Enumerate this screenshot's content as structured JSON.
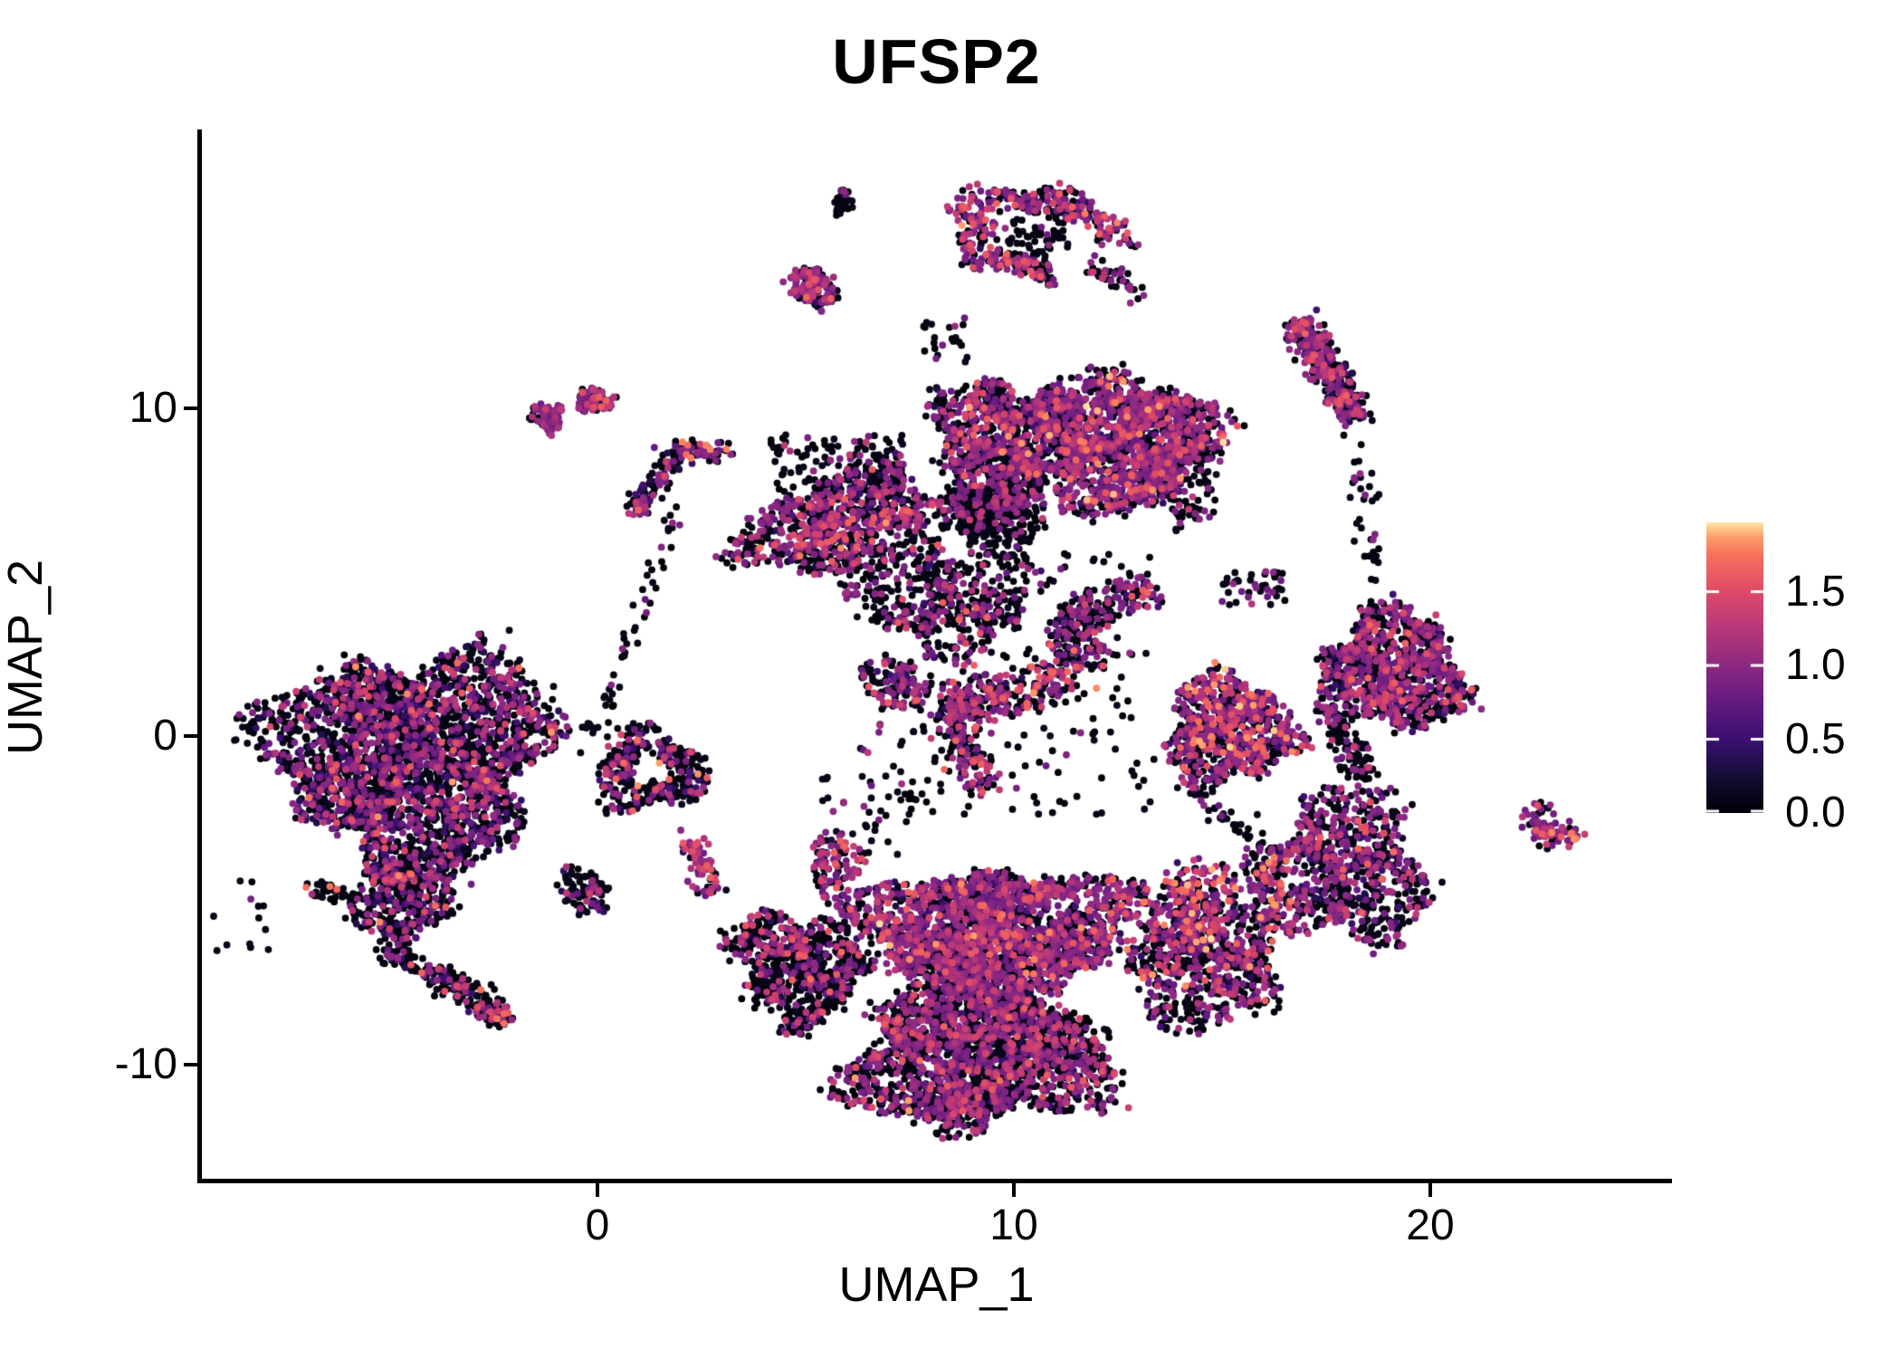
{
  "chart_data": {
    "type": "scatter",
    "title": "UFSP2",
    "xlabel": "UMAP_1",
    "ylabel": "UMAP_2",
    "xlim": [
      -9.5,
      25.8
    ],
    "ylim": [
      -13.5,
      18.5
    ],
    "x_ticks": [
      0,
      10,
      20
    ],
    "y_ticks": [
      -10,
      0,
      10
    ],
    "grid": false,
    "background": "#ffffff",
    "axis_color": "#000000",
    "legend_position": "right",
    "colorbar": {
      "ticks": [
        0.0,
        0.5,
        1.0,
        1.5
      ],
      "domain": [
        0,
        1.97
      ],
      "colormap_name": "magma",
      "stops_t": [
        0,
        0.125,
        0.25,
        0.375,
        0.5,
        0.625,
        0.75,
        0.875,
        0.9375,
        0.97,
        1.0
      ],
      "stops_hex": [
        "#000004",
        "#140e36",
        "#3b0f70",
        "#641a80",
        "#8c2981",
        "#b73779",
        "#de4968",
        "#f7705c",
        "#fe9f6d",
        "#fecf92",
        "#fcfdbf"
      ]
    },
    "value_bins": {
      "b": [
        0.0,
        0.12
      ],
      "d": [
        0.3,
        0.6
      ],
      "p": [
        0.75,
        1.05
      ],
      "m": [
        1.08,
        1.38
      ],
      "s": [
        1.4,
        1.68
      ],
      "o": [
        1.7,
        1.88
      ],
      "c": [
        1.88,
        1.97
      ]
    },
    "clusters": [
      {
        "name": "left-main",
        "t": "blob",
        "x": -4.46,
        "y": -0.69,
        "rx": 3.26,
        "ry": 3.31,
        "n": 3000,
        "mix": {
          "b": 0.6,
          "d": 0.1,
          "p": 0.2,
          "m": 0.075,
          "s": 0.02,
          "o": 0.005
        }
      },
      {
        "name": "left-neck",
        "t": "blob",
        "x": -4.67,
        "y": -4.88,
        "rx": 1.09,
        "ry": 1.52,
        "n": 380,
        "mix": {
          "b": 0.68,
          "d": 0.06,
          "p": 0.15,
          "m": 0.08,
          "s": 0.025,
          "o": 0.005
        }
      },
      {
        "name": "left-tail",
        "t": "strip",
        "x1": -5.0,
        "y1": -6.4,
        "x2": -2.26,
        "y2": -8.58,
        "w": 0.33,
        "n": 230,
        "mix": {
          "b": 0.78,
          "d": 0.05,
          "p": 0.1,
          "m": 0.05,
          "s": 0.015,
          "o": 0.005
        }
      },
      {
        "name": "left-tail-tip",
        "t": "blob",
        "x": -2.3,
        "y": -8.5,
        "rx": 0.28,
        "ry": 0.28,
        "n": 12,
        "mix": {
          "m": 0.3,
          "s": 0.3,
          "o": 0.3,
          "p": 0.1
        }
      },
      {
        "name": "left-specks",
        "t": "blob",
        "x": -6.52,
        "y": -4.72,
        "rx": 0.55,
        "ry": 0.35,
        "n": 32,
        "mix": {
          "b": 0.8,
          "p": 0.1,
          "m": 0.02,
          "o": 0.08
        }
      },
      {
        "name": "below-left-sparse",
        "t": "box",
        "x1": -9.3,
        "y1": -6.8,
        "x2": -7.7,
        "y2": -4.4,
        "n": 13,
        "mix": {
          "b": 0.95,
          "p": 0.05
        }
      },
      {
        "name": "left-iso-small",
        "t": "blob",
        "x": -0.37,
        "y": -4.72,
        "rx": 0.6,
        "ry": 0.63,
        "n": 105,
        "mix": {
          "b": 0.7,
          "d": 0.08,
          "p": 0.12,
          "m": 0.1
        }
      },
      {
        "name": "left-loop",
        "t": "ring",
        "x": 1.26,
        "y": -1.08,
        "rx": 1.3,
        "ry": 1.21,
        "r0": 0.35,
        "n": 400,
        "mix": {
          "b": 0.64,
          "d": 0.1,
          "p": 0.15,
          "m": 0.07,
          "s": 0.03,
          "o": 0.01
        }
      },
      {
        "name": "loop-conn",
        "t": "box",
        "x1": -1.0,
        "y1": -0.6,
        "x2": -0.1,
        "y2": 0.4,
        "n": 9,
        "mix": {
          "b": 0.9,
          "p": 0.1
        }
      },
      {
        "name": "top-pair-a",
        "t": "blob",
        "x": -1.2,
        "y": 9.71,
        "rx": 0.4,
        "ry": 0.45,
        "n": 80,
        "mix": {
          "p": 0.55,
          "b": 0.33,
          "m": 0.12
        }
      },
      {
        "name": "top-pair-b",
        "t": "blob",
        "x": -0.09,
        "y": 10.23,
        "rx": 0.45,
        "ry": 0.36,
        "n": 80,
        "mix": {
          "p": 0.42,
          "b": 0.32,
          "m": 0.18,
          "s": 0.08
        }
      },
      {
        "name": "stick",
        "t": "strip",
        "x1": 0.93,
        "y1": 6.98,
        "x2": 2.0,
        "y2": 8.72,
        "w": 0.3,
        "n": 100,
        "mix": {
          "b": 0.58,
          "d": 0.1,
          "p": 0.22,
          "m": 0.08,
          "s": 0.02
        }
      },
      {
        "name": "stick-tip",
        "t": "blob",
        "x": 0.95,
        "y": 6.9,
        "rx": 0.22,
        "ry": 0.25,
        "n": 13,
        "mix": {
          "m": 0.45,
          "p": 0.25,
          "b": 0.15,
          "s": 0.15
        }
      },
      {
        "name": "stick-arm",
        "t": "strip",
        "x1": 2.0,
        "y1": 8.72,
        "x2": 3.11,
        "y2": 8.66,
        "w": 0.24,
        "n": 50,
        "mix": {
          "b": 0.5,
          "p": 0.3,
          "m": 0.1,
          "o": 0.1
        }
      },
      {
        "name": "stick-trail",
        "t": "strip",
        "x1": 0.04,
        "y1": 0.08,
        "x2": 1.91,
        "y2": 6.76,
        "w": 0.25,
        "n": 50,
        "mix": {
          "b": 0.9,
          "p": 0.1
        }
      },
      {
        "name": "tiny-speck",
        "t": "blob",
        "x": 5.91,
        "y": 16.3,
        "rx": 0.24,
        "ry": 0.36,
        "n": 26,
        "mix": {
          "b": 0.92,
          "p": 0.08
        }
      },
      {
        "name": "small-pink",
        "t": "blob",
        "x": 5.15,
        "y": 13.68,
        "rx": 0.57,
        "ry": 0.62,
        "n": 145,
        "mix": {
          "b": 0.3,
          "d": 0.08,
          "p": 0.38,
          "m": 0.18,
          "s": 0.06
        }
      },
      {
        "name": "small-pink-outlier",
        "t": "box",
        "x1": 5.3,
        "y1": 12.8,
        "x2": 5.5,
        "y2": 13.0,
        "n": 2,
        "mix": {
          "p": 1.0
        }
      },
      {
        "name": "top-horseshoe",
        "t": "ring",
        "x": 10.61,
        "y": 15.31,
        "rx": 1.85,
        "ry": 1.66,
        "r0": 0.52,
        "gap": [
          15,
          75
        ],
        "n": 400,
        "mix": {
          "b": 0.4,
          "d": 0.05,
          "p": 0.3,
          "m": 0.15,
          "s": 0.09,
          "o": 0.01
        }
      },
      {
        "name": "horseshoe-inner",
        "t": "blob",
        "x": 10.61,
        "y": 15.31,
        "rx": 0.8,
        "ry": 0.7,
        "n": 60,
        "mix": {
          "b": 0.85,
          "p": 0.15
        }
      },
      {
        "name": "horseshoe-tail",
        "t": "strip",
        "x1": 11.85,
        "y1": 14.37,
        "x2": 13.0,
        "y2": 13.48,
        "w": 0.3,
        "n": 40,
        "mix": {
          "b": 0.6,
          "p": 0.3,
          "m": 0.1
        }
      },
      {
        "name": "right-elongated",
        "t": "strip",
        "x1": 16.89,
        "y1": 12.5,
        "x2": 18.2,
        "y2": 9.79,
        "w": 0.38,
        "n": 390,
        "mix": {
          "b": 0.45,
          "d": 0.08,
          "p": 0.31,
          "m": 0.12,
          "s": 0.035,
          "o": 0.005
        }
      },
      {
        "name": "rc-sparse-pair",
        "t": "box",
        "x1": 14.96,
        "y1": 4.0,
        "x2": 16.52,
        "y2": 5.05,
        "n": 44,
        "mix": {
          "b": 0.65,
          "p": 0.3,
          "m": 0.05
        }
      },
      {
        "name": "right-center-warm",
        "t": "blob",
        "x": 15.15,
        "y": 0.19,
        "rx": 1.52,
        "ry": 1.66,
        "n": 780,
        "mix": {
          "b": 0.43,
          "d": 0.08,
          "p": 0.26,
          "m": 0.11,
          "s": 0.08,
          "o": 0.03,
          "c": 0.01
        }
      },
      {
        "name": "right-middle",
        "t": "blob",
        "x": 19.08,
        "y": 1.96,
        "rx": 1.74,
        "ry": 1.77,
        "n": 1020,
        "mix": {
          "b": 0.49,
          "d": 0.07,
          "p": 0.29,
          "m": 0.11,
          "s": 0.035,
          "o": 0.005
        }
      },
      {
        "name": "rm-dark-tail",
        "t": "strip",
        "x1": 17.72,
        "y1": 0.36,
        "x2": 18.43,
        "y2": -1.24,
        "w": 0.36,
        "n": 85,
        "mix": {
          "b": 0.78,
          "p": 0.16,
          "m": 0.06
        }
      },
      {
        "name": "rm-trail-up",
        "t": "strip",
        "x1": 18.26,
        "y1": 8.91,
        "x2": 18.7,
        "y2": 3.89,
        "w": 0.3,
        "n": 36,
        "mix": {
          "b": 0.85,
          "p": 0.15
        }
      },
      {
        "name": "arrow-right",
        "t": "blob",
        "x": 17.91,
        "y": -4.06,
        "rx": 2.0,
        "ry": 2.32,
        "n": 820,
        "mix": {
          "b": 0.5,
          "d": 0.08,
          "p": 0.28,
          "m": 0.11,
          "s": 0.025,
          "o": 0.005
        }
      },
      {
        "name": "arrow-warm-edge",
        "t": "blob",
        "x": 16.26,
        "y": -4.2,
        "rx": 0.35,
        "ry": 0.85,
        "n": 28,
        "mix": {
          "m": 0.3,
          "s": 0.3,
          "o": 0.25,
          "p": 0.15
        }
      },
      {
        "name": "diag-trail",
        "t": "strip",
        "x1": 14.17,
        "y1": -1.52,
        "x2": 16.52,
        "y2": -3.83,
        "w": 0.3,
        "n": 50,
        "mix": {
          "b": 0.9,
          "p": 0.1
        }
      },
      {
        "name": "far-right-arc",
        "t": "strip",
        "x1": 22.48,
        "y1": -2.34,
        "x2": 23.48,
        "y2": -3.12,
        "w": 0.3,
        "bend": 0.25,
        "n": 80,
        "mix": {
          "b": 0.3,
          "d": 0.08,
          "p": 0.42,
          "m": 0.12,
          "s": 0.05,
          "o": 0.03
        }
      },
      {
        "name": "arc-orange-tip",
        "t": "blob",
        "x": 23.4,
        "y": -3.05,
        "rx": 0.12,
        "ry": 0.12,
        "n": 5,
        "mix": {
          "o": 0.6,
          "s": 0.4
        }
      },
      {
        "name": "topcluster-core-right",
        "t": "blob",
        "x": 12.65,
        "y": 8.99,
        "rx": 2.09,
        "ry": 2.1,
        "n": 1450,
        "mix": {
          "b": 0.36,
          "d": 0.06,
          "p": 0.4,
          "m": 0.12,
          "s": 0.045,
          "o": 0.012,
          "c": 0.003
        }
      },
      {
        "name": "topcluster-core-mid",
        "t": "blob",
        "x": 9.74,
        "y": 8.86,
        "rx": 1.7,
        "ry": 1.99,
        "n": 980,
        "mix": {
          "b": 0.49,
          "d": 0.05,
          "p": 0.31,
          "m": 0.11,
          "s": 0.035,
          "o": 0.005
        }
      },
      {
        "name": "topcluster-black-knot",
        "t": "blob",
        "x": 9.57,
        "y": 6.7,
        "rx": 1.3,
        "ry": 1.24,
        "n": 330,
        "mix": {
          "b": 0.84,
          "p": 0.13,
          "m": 0.03
        }
      },
      {
        "name": "topcluster-left-arm",
        "t": "blob",
        "x": 5.83,
        "y": 6.4,
        "rx": 2.43,
        "ry": 1.49,
        "rot": -10,
        "n": 780,
        "mix": {
          "b": 0.5,
          "d": 0.06,
          "p": 0.29,
          "m": 0.11,
          "s": 0.035,
          "o": 0.005
        }
      },
      {
        "name": "arm-warm-chain",
        "t": "strip",
        "x1": 4.6,
        "y1": 5.88,
        "x2": 8.43,
        "y2": 6.98,
        "w": 0.3,
        "n": 55,
        "mix": {
          "m": 0.38,
          "s": 0.25,
          "p": 0.2,
          "b": 0.12,
          "o": 0.05
        }
      },
      {
        "name": "arm-top-fringe",
        "t": "box",
        "x1": 4.13,
        "y1": 7.39,
        "x2": 7.39,
        "y2": 9.18,
        "n": 140,
        "mix": {
          "b": 0.8,
          "p": 0.15,
          "m": 0.05
        }
      },
      {
        "name": "topcluster-bottom-fringe",
        "t": "blob",
        "x": 8.43,
        "y": 4.03,
        "rx": 2.17,
        "ry": 1.43,
        "n": 430,
        "mix": {
          "b": 0.66,
          "d": 0.05,
          "p": 0.22,
          "m": 0.06,
          "s": 0.01
        }
      },
      {
        "name": "topcluster-right-fringe",
        "t": "blob",
        "x": 14.02,
        "y": 8.5,
        "rx": 0.91,
        "ry": 1.88,
        "n": 210,
        "mix": {
          "b": 0.7,
          "p": 0.2,
          "m": 0.08,
          "s": 0.02
        }
      },
      {
        "name": "topcluster-stray-top",
        "t": "box",
        "x1": 7.83,
        "y1": 11.39,
        "x2": 9.02,
        "y2": 12.77,
        "n": 22,
        "mix": {
          "b": 0.9,
          "p": 0.1
        }
      },
      {
        "name": "mid-s-curve",
        "t": "strip",
        "x1": 8.43,
        "y1": 0.97,
        "x2": 12.0,
        "y2": 2.95,
        "w": 0.57,
        "bend": 0.45,
        "n": 330,
        "mix": {
          "b": 0.37,
          "d": 0.05,
          "p": 0.27,
          "m": 0.21,
          "s": 0.08,
          "o": 0.02
        }
      },
      {
        "name": "mid-hook",
        "t": "strip",
        "x1": 11.04,
        "y1": 2.9,
        "x2": 13.3,
        "y2": 4.44,
        "w": 0.5,
        "bend": -0.35,
        "n": 200,
        "mix": {
          "b": 0.52,
          "d": 0.06,
          "p": 0.28,
          "m": 0.1,
          "s": 0.04
        }
      },
      {
        "name": "mid-v-string",
        "t": "strip",
        "x1": 8.52,
        "y1": 0.63,
        "x2": 9.2,
        "y2": -1.52,
        "w": 0.45,
        "n": 145,
        "mix": {
          "b": 0.44,
          "d": 0.05,
          "p": 0.27,
          "m": 0.16,
          "s": 0.08
        }
      },
      {
        "name": "mid-small",
        "t": "blob",
        "x": 7.13,
        "y": 1.6,
        "rx": 0.78,
        "ry": 0.83,
        "n": 125,
        "mix": {
          "b": 0.55,
          "d": 0.05,
          "p": 0.22,
          "m": 0.13,
          "s": 0.05
        }
      },
      {
        "name": "mid-sparse",
        "t": "box",
        "x1": 6.3,
        "y1": -2.4,
        "x2": 13.48,
        "y2": 5.6,
        "n": 190,
        "mix": {
          "b": 0.85,
          "p": 0.1,
          "m": 0.05
        }
      },
      {
        "name": "pink-string-a",
        "t": "strip",
        "x1": 2.22,
        "y1": -3.09,
        "x2": 2.78,
        "y2": -4.75,
        "w": 0.3,
        "n": 75,
        "mix": {
          "b": 0.3,
          "d": 0.05,
          "p": 0.3,
          "m": 0.25,
          "s": 0.1
        }
      },
      {
        "name": "pink-string-b",
        "t": "blob",
        "x": 5.7,
        "y": -3.83,
        "rx": 0.6,
        "ry": 0.94,
        "n": 95,
        "mix": {
          "b": 0.35,
          "d": 0.05,
          "p": 0.28,
          "m": 0.22,
          "s": 0.08,
          "o": 0.02
        }
      },
      {
        "name": "string-connect",
        "t": "box",
        "x1": 5.22,
        "y1": -3.64,
        "x2": 8.26,
        "y2": -1.16,
        "n": 42,
        "mix": {
          "b": 0.9,
          "p": 0.1
        }
      },
      {
        "name": "bottom-left-arm",
        "t": "blob",
        "x": 4.83,
        "y": -7.03,
        "rx": 1.63,
        "ry": 1.66,
        "rot": 18,
        "n": 720,
        "mix": {
          "b": 0.71,
          "d": 0.05,
          "p": 0.12,
          "m": 0.09,
          "s": 0.025,
          "o": 0.005
        }
      },
      {
        "name": "bottom-upper",
        "t": "blob",
        "x": 9.57,
        "y": -5.99,
        "rx": 3.26,
        "ry": 1.99,
        "n": 2200,
        "mix": {
          "b": 0.42,
          "d": 0.05,
          "p": 0.36,
          "m": 0.12,
          "s": 0.04,
          "o": 0.008,
          "c": 0.002
        }
      },
      {
        "name": "bottom-lower",
        "t": "blob",
        "x": 9.13,
        "y": -9.57,
        "rx": 3.04,
        "ry": 2.26,
        "n": 2100,
        "mix": {
          "b": 0.59,
          "d": 0.04,
          "p": 0.25,
          "m": 0.09,
          "s": 0.025,
          "o": 0.005
        }
      },
      {
        "name": "bottom-right-ext",
        "t": "blob",
        "x": 14.57,
        "y": -6.76,
        "rx": 2.07,
        "ry": 1.88,
        "n": 720,
        "mix": {
          "b": 0.54,
          "d": 0.05,
          "p": 0.25,
          "m": 0.1,
          "s": 0.05,
          "o": 0.01
        }
      },
      {
        "name": "bottom-warm-patch",
        "t": "blob",
        "x": 14.5,
        "y": -5.02,
        "rx": 0.83,
        "ry": 1.38,
        "n": 150,
        "mix": {
          "b": 0.3,
          "d": 0.05,
          "p": 0.22,
          "m": 0.2,
          "s": 0.14,
          "o": 0.07,
          "c": 0.02
        }
      },
      {
        "name": "bottom-tip",
        "t": "blob",
        "x": 8.74,
        "y": -11.28,
        "rx": 1.2,
        "ry": 0.88,
        "n": 170,
        "mix": {
          "b": 0.6,
          "p": 0.28,
          "m": 0.1,
          "s": 0.02
        }
      }
    ]
  }
}
